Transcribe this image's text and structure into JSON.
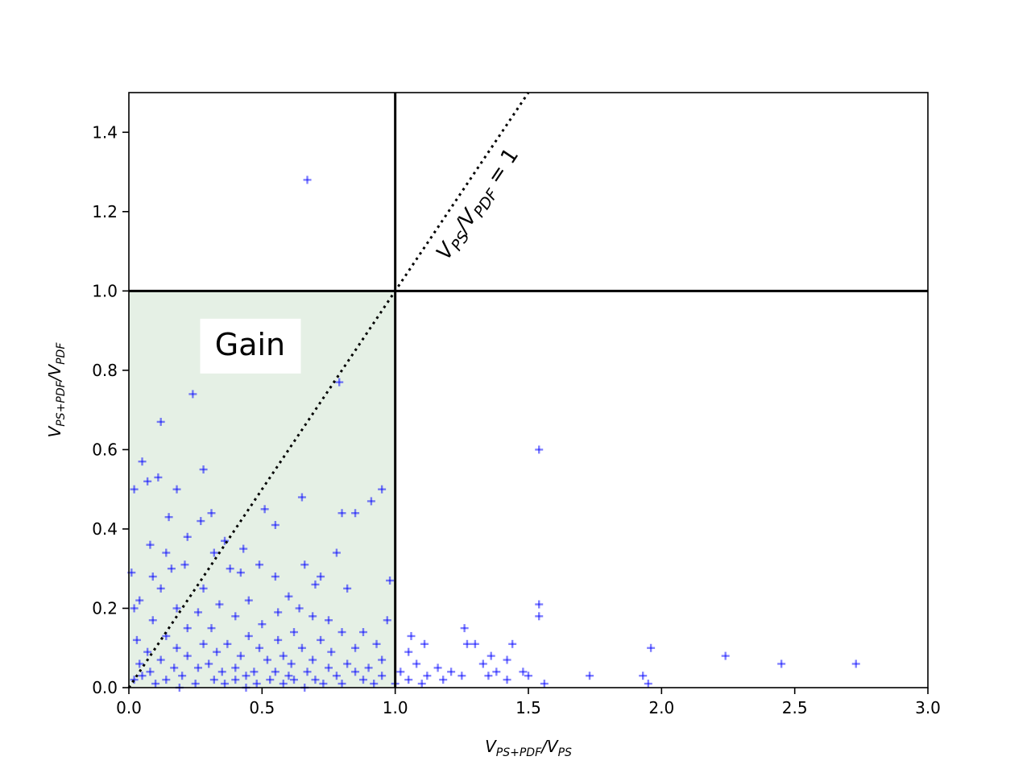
{
  "chart_data": {
    "type": "scatter",
    "xlabel": {
      "base1": "V",
      "sub1": "PS+PDF",
      "sep": "/",
      "base2": "V",
      "sub2": "PS"
    },
    "ylabel": {
      "base1": "V",
      "sub1": "PS+PDF",
      "sep": "/",
      "base2": "V",
      "sub2": "PDF"
    },
    "xlim": [
      0,
      3.0
    ],
    "ylim": [
      0,
      1.5
    ],
    "x_ticks": [
      "0.0",
      "0.5",
      "1.0",
      "1.5",
      "2.0",
      "2.5",
      "3.0"
    ],
    "y_ticks": [
      "0.0",
      "0.2",
      "0.4",
      "0.6",
      "0.8",
      "1.0",
      "1.2",
      "1.4"
    ],
    "grid": false,
    "marker": "+",
    "marker_color": "#0000ff",
    "marker_alpha": 0.5,
    "reference_lines": [
      {
        "orientation": "vertical",
        "value": 1.0,
        "style": "solid"
      },
      {
        "orientation": "horizontal",
        "value": 1.0,
        "style": "solid"
      },
      {
        "orientation": "diagonal",
        "slope": 1.0,
        "style": "dotted"
      }
    ],
    "diagonal_label": {
      "base1": "V",
      "sub1": "PS",
      "sep": "/",
      "base2": "V",
      "sub2": "PDF",
      "eq": " = 1"
    },
    "gain_region": {
      "x": [
        0,
        1.0
      ],
      "y": [
        0,
        1.0
      ],
      "color": "#e5f0e5",
      "label": "Gain"
    },
    "points": [
      [
        0.67,
        1.28
      ],
      [
        1.54,
        0.6
      ],
      [
        0.24,
        0.74
      ],
      [
        0.79,
        0.77
      ],
      [
        0.12,
        0.67
      ],
      [
        0.05,
        0.57
      ],
      [
        0.28,
        0.55
      ],
      [
        0.07,
        0.52
      ],
      [
        0.11,
        0.53
      ],
      [
        0.02,
        0.5
      ],
      [
        0.18,
        0.5
      ],
      [
        0.95,
        0.5
      ],
      [
        0.65,
        0.48
      ],
      [
        0.91,
        0.47
      ],
      [
        0.51,
        0.45
      ],
      [
        0.85,
        0.44
      ],
      [
        0.8,
        0.44
      ],
      [
        0.31,
        0.44
      ],
      [
        0.15,
        0.43
      ],
      [
        0.55,
        0.41
      ],
      [
        0.27,
        0.42
      ],
      [
        0.22,
        0.38
      ],
      [
        0.36,
        0.37
      ],
      [
        0.08,
        0.36
      ],
      [
        0.43,
        0.35
      ],
      [
        0.32,
        0.34
      ],
      [
        0.14,
        0.34
      ],
      [
        0.78,
        0.34
      ],
      [
        0.66,
        0.31
      ],
      [
        0.49,
        0.31
      ],
      [
        0.21,
        0.31
      ],
      [
        0.01,
        0.29
      ],
      [
        0.38,
        0.3
      ],
      [
        0.16,
        0.3
      ],
      [
        0.42,
        0.29
      ],
      [
        0.55,
        0.28
      ],
      [
        0.72,
        0.28
      ],
      [
        0.09,
        0.28
      ],
      [
        0.98,
        0.27
      ],
      [
        0.7,
        0.26
      ],
      [
        0.82,
        0.25
      ],
      [
        0.28,
        0.25
      ],
      [
        0.12,
        0.25
      ],
      [
        0.04,
        0.22
      ],
      [
        0.6,
        0.23
      ],
      [
        1.54,
        0.21
      ],
      [
        1.54,
        0.18
      ],
      [
        0.45,
        0.22
      ],
      [
        0.34,
        0.21
      ],
      [
        0.02,
        0.2
      ],
      [
        0.64,
        0.2
      ],
      [
        0.18,
        0.2
      ],
      [
        0.26,
        0.19
      ],
      [
        0.56,
        0.19
      ],
      [
        0.69,
        0.18
      ],
      [
        0.75,
        0.17
      ],
      [
        0.4,
        0.18
      ],
      [
        0.09,
        0.17
      ],
      [
        0.97,
        0.17
      ],
      [
        0.5,
        0.16
      ],
      [
        1.26,
        0.15
      ],
      [
        0.22,
        0.15
      ],
      [
        0.31,
        0.15
      ],
      [
        0.88,
        0.14
      ],
      [
        0.62,
        0.14
      ],
      [
        0.8,
        0.14
      ],
      [
        0.14,
        0.13
      ],
      [
        0.45,
        0.13
      ],
      [
        1.06,
        0.13
      ],
      [
        0.03,
        0.12
      ],
      [
        0.72,
        0.12
      ],
      [
        0.56,
        0.12
      ],
      [
        0.37,
        0.11
      ],
      [
        0.28,
        0.11
      ],
      [
        0.93,
        0.11
      ],
      [
        1.44,
        0.11
      ],
      [
        1.3,
        0.11
      ],
      [
        1.27,
        0.11
      ],
      [
        1.11,
        0.11
      ],
      [
        1.96,
        0.1
      ],
      [
        0.18,
        0.1
      ],
      [
        0.65,
        0.1
      ],
      [
        0.49,
        0.1
      ],
      [
        0.85,
        0.1
      ],
      [
        0.07,
        0.09
      ],
      [
        1.05,
        0.09
      ],
      [
        0.33,
        0.09
      ],
      [
        0.76,
        0.09
      ],
      [
        0.58,
        0.08
      ],
      [
        1.36,
        0.08
      ],
      [
        2.24,
        0.08
      ],
      [
        0.22,
        0.08
      ],
      [
        0.42,
        0.08
      ],
      [
        0.95,
        0.07
      ],
      [
        0.12,
        0.07
      ],
      [
        0.69,
        0.07
      ],
      [
        1.42,
        0.07
      ],
      [
        0.52,
        0.07
      ],
      [
        0.3,
        0.06
      ],
      [
        0.82,
        0.06
      ],
      [
        1.33,
        0.06
      ],
      [
        2.45,
        0.06
      ],
      [
        2.73,
        0.06
      ],
      [
        0.04,
        0.06
      ],
      [
        0.61,
        0.06
      ],
      [
        1.08,
        0.06
      ],
      [
        0.4,
        0.05
      ],
      [
        0.17,
        0.05
      ],
      [
        0.75,
        0.05
      ],
      [
        0.9,
        0.05
      ],
      [
        1.16,
        0.05
      ],
      [
        0.26,
        0.05
      ],
      [
        0.55,
        0.04
      ],
      [
        1.38,
        0.04
      ],
      [
        1.48,
        0.04
      ],
      [
        0.08,
        0.04
      ],
      [
        0.47,
        0.04
      ],
      [
        0.67,
        0.04
      ],
      [
        1.02,
        0.04
      ],
      [
        0.35,
        0.04
      ],
      [
        0.85,
        0.04
      ],
      [
        1.21,
        0.04
      ],
      [
        1.5,
        0.03
      ],
      [
        0.2,
        0.03
      ],
      [
        0.6,
        0.03
      ],
      [
        1.12,
        0.03
      ],
      [
        0.44,
        0.03
      ],
      [
        0.78,
        0.03
      ],
      [
        1.25,
        0.03
      ],
      [
        1.73,
        0.03
      ],
      [
        1.93,
        0.03
      ],
      [
        0.05,
        0.03
      ],
      [
        0.95,
        0.03
      ],
      [
        1.35,
        0.03
      ],
      [
        0.32,
        0.02
      ],
      [
        0.53,
        0.02
      ],
      [
        0.7,
        0.02
      ],
      [
        1.05,
        0.02
      ],
      [
        0.14,
        0.02
      ],
      [
        0.88,
        0.02
      ],
      [
        1.18,
        0.02
      ],
      [
        1.42,
        0.02
      ],
      [
        0.4,
        0.02
      ],
      [
        0.62,
        0.02
      ],
      [
        0.02,
        0.02
      ],
      [
        0.25,
        0.01
      ],
      [
        0.48,
        0.01
      ],
      [
        0.8,
        0.01
      ],
      [
        1.0,
        0.01
      ],
      [
        1.1,
        0.01
      ],
      [
        1.56,
        0.01
      ],
      [
        1.95,
        0.01
      ],
      [
        0.58,
        0.01
      ],
      [
        0.1,
        0.01
      ],
      [
        0.36,
        0.01
      ],
      [
        0.73,
        0.01
      ],
      [
        0.92,
        0.01
      ],
      [
        0.19,
        0.0
      ],
      [
        0.44,
        0.0
      ],
      [
        0.66,
        0.0
      ]
    ]
  }
}
